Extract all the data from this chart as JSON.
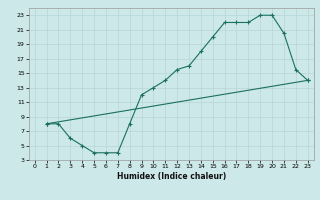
{
  "title": "",
  "xlabel": "Humidex (Indice chaleur)",
  "bg_color": "#cce8e8",
  "grid_color": "#b8d4d4",
  "line_color": "#1a7060",
  "xlim": [
    -0.5,
    23.5
  ],
  "ylim": [
    3,
    24
  ],
  "xticks": [
    0,
    1,
    2,
    3,
    4,
    5,
    6,
    7,
    8,
    9,
    10,
    11,
    12,
    13,
    14,
    15,
    16,
    17,
    18,
    19,
    20,
    21,
    22,
    23
  ],
  "yticks": [
    3,
    5,
    7,
    9,
    11,
    13,
    15,
    17,
    19,
    21,
    23
  ],
  "line1_x": [
    1,
    2,
    3,
    4,
    5,
    6,
    7,
    8,
    9,
    10,
    11,
    12,
    13,
    14,
    15,
    16,
    17,
    18,
    19,
    20,
    21,
    22,
    23
  ],
  "line1_y": [
    8,
    8,
    6,
    5,
    4,
    4,
    4,
    8,
    12,
    13,
    14,
    15.5,
    16,
    18,
    20,
    22,
    22,
    22,
    23,
    23,
    20.5,
    15.5,
    14
  ],
  "line2_x": [
    1,
    23
  ],
  "line2_y": [
    8,
    14
  ],
  "marker": "+"
}
